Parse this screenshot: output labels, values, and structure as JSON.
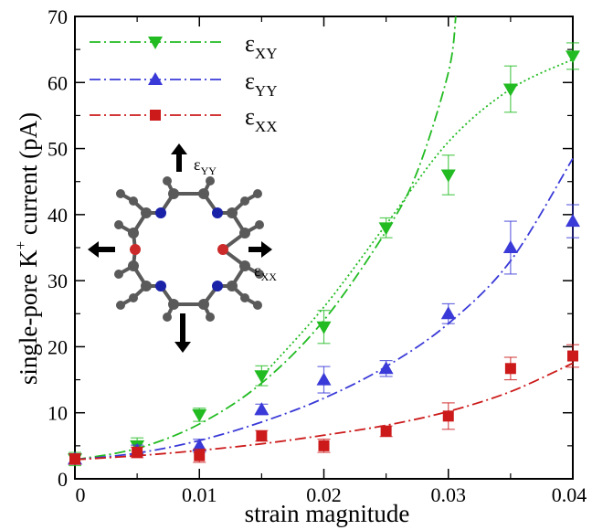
{
  "chart_data": {
    "type": "scatter",
    "xlabel": "strain magnitude",
    "ylabel_main": "single-pore K",
    "ylabel_sup": "+",
    "ylabel_rest": " current (pA)",
    "xlim": [
      0,
      0.04
    ],
    "ylim": [
      0,
      70
    ],
    "x_ticks": [
      0,
      0.01,
      0.02,
      0.03,
      0.04
    ],
    "x_tick_labels": [
      "0",
      "0.01",
      "0.02",
      "0.03",
      "0.04"
    ],
    "y_ticks": [
      0,
      10,
      20,
      30,
      40,
      50,
      60,
      70
    ],
    "y_tick_labels": [
      "0",
      "10",
      "20",
      "30",
      "40",
      "50",
      "60",
      "70"
    ],
    "grid": false,
    "legend_position": "top-left",
    "series": [
      {
        "key": "xy",
        "name": "ε",
        "subscript": "XY",
        "color": "#22bb22",
        "marker": "triangle-down",
        "x": [
          0,
          0.005,
          0.01,
          0.015,
          0.02,
          0.025,
          0.03,
          0.035,
          0.04
        ],
        "y": [
          3.0,
          5.0,
          9.7,
          15.6,
          23.0,
          38.0,
          46.0,
          59.0,
          64.0
        ],
        "err": [
          1.0,
          1.2,
          1.0,
          1.5,
          2.5,
          1.5,
          3.0,
          3.5,
          2.0
        ],
        "fit_x": [
          0,
          0.005,
          0.01,
          0.015,
          0.02,
          0.025,
          0.0275,
          0.03,
          0.0306
        ],
        "fit_y": [
          2.9,
          4.6,
          8.3,
          14.5,
          24.0,
          37.5,
          46.5,
          61.5,
          70.0
        ],
        "fit2_x": [
          0.015,
          0.02,
          0.025,
          0.03,
          0.035,
          0.04
        ],
        "fit2_y": [
          15.5,
          26.0,
          38.5,
          51.0,
          59.0,
          63.5
        ]
      },
      {
        "key": "yy",
        "name": "ε",
        "subscript": "YY",
        "color": "#3a3ad8",
        "marker": "triangle-up",
        "x": [
          0,
          0.005,
          0.01,
          0.015,
          0.02,
          0.025,
          0.03,
          0.035,
          0.04
        ],
        "y": [
          3.0,
          4.3,
          5.0,
          10.5,
          15.0,
          16.7,
          25.0,
          35.0,
          39.0
        ],
        "err": [
          0.8,
          0.8,
          1.0,
          0.8,
          2.0,
          1.2,
          1.5,
          4.0,
          2.5
        ],
        "fit_x": [
          0,
          0.005,
          0.01,
          0.015,
          0.02,
          0.025,
          0.03,
          0.035,
          0.04
        ],
        "fit_y": [
          2.9,
          3.9,
          5.8,
          8.6,
          12.2,
          17.0,
          23.5,
          33.0,
          48.5
        ]
      },
      {
        "key": "xx",
        "name": "ε",
        "subscript": "XX",
        "color": "#cc1a1a",
        "marker": "square",
        "x": [
          0,
          0.005,
          0.01,
          0.015,
          0.02,
          0.025,
          0.03,
          0.035,
          0.04
        ],
        "y": [
          3.0,
          4.0,
          3.5,
          6.5,
          5.0,
          7.2,
          9.5,
          16.7,
          18.6
        ],
        "err": [
          0.8,
          0.8,
          1.0,
          0.8,
          1.0,
          0.8,
          2.0,
          1.7,
          1.7
        ],
        "fit_x": [
          0,
          0.005,
          0.01,
          0.015,
          0.02,
          0.025,
          0.03,
          0.035,
          0.04
        ],
        "fit_y": [
          2.9,
          3.5,
          4.3,
          5.3,
          6.6,
          8.1,
          10.2,
          13.2,
          17.5
        ]
      }
    ]
  },
  "inset": {
    "label_top": "ε",
    "label_top_sub": "YY",
    "label_right": "ε",
    "label_right_sub": "XX",
    "colors": {
      "carbon": "#5a5a5a",
      "nitrogen": "#1a22a8",
      "oxygen": "#cc2a2a",
      "arrow": "#000000"
    }
  }
}
